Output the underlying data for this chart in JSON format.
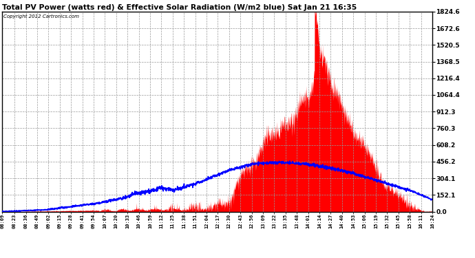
{
  "title": "Total PV Power (watts red) & Effective Solar Radiation (W/m2 blue) Sat Jan 21 16:35",
  "copyright": "Copyright 2012 Cartronics.com",
  "bg_color": "#ffffff",
  "plot_bg_color": "#ffffff",
  "grid_color": "#aaaaaa",
  "red_color": "#ff0000",
  "blue_color": "#0000ff",
  "ymax": 1824.6,
  "ymin": 0.0,
  "yticks": [
    0.0,
    152.1,
    304.1,
    456.2,
    608.2,
    760.3,
    912.3,
    1064.4,
    1216.4,
    1368.5,
    1520.5,
    1672.6,
    1824.6
  ],
  "xtick_labels": [
    "08:09",
    "08:23",
    "08:36",
    "08:49",
    "09:02",
    "09:15",
    "09:28",
    "09:41",
    "09:54",
    "10:07",
    "10:20",
    "10:33",
    "10:46",
    "10:59",
    "11:12",
    "11:25",
    "11:38",
    "11:51",
    "12:04",
    "12:17",
    "12:30",
    "12:43",
    "12:56",
    "13:09",
    "13:22",
    "13:35",
    "13:48",
    "14:01",
    "14:14",
    "14:27",
    "14:40",
    "14:53",
    "15:06",
    "15:19",
    "15:32",
    "15:45",
    "15:58",
    "16:11",
    "16:24"
  ],
  "pv_seed": 42,
  "sol_seed": 99
}
